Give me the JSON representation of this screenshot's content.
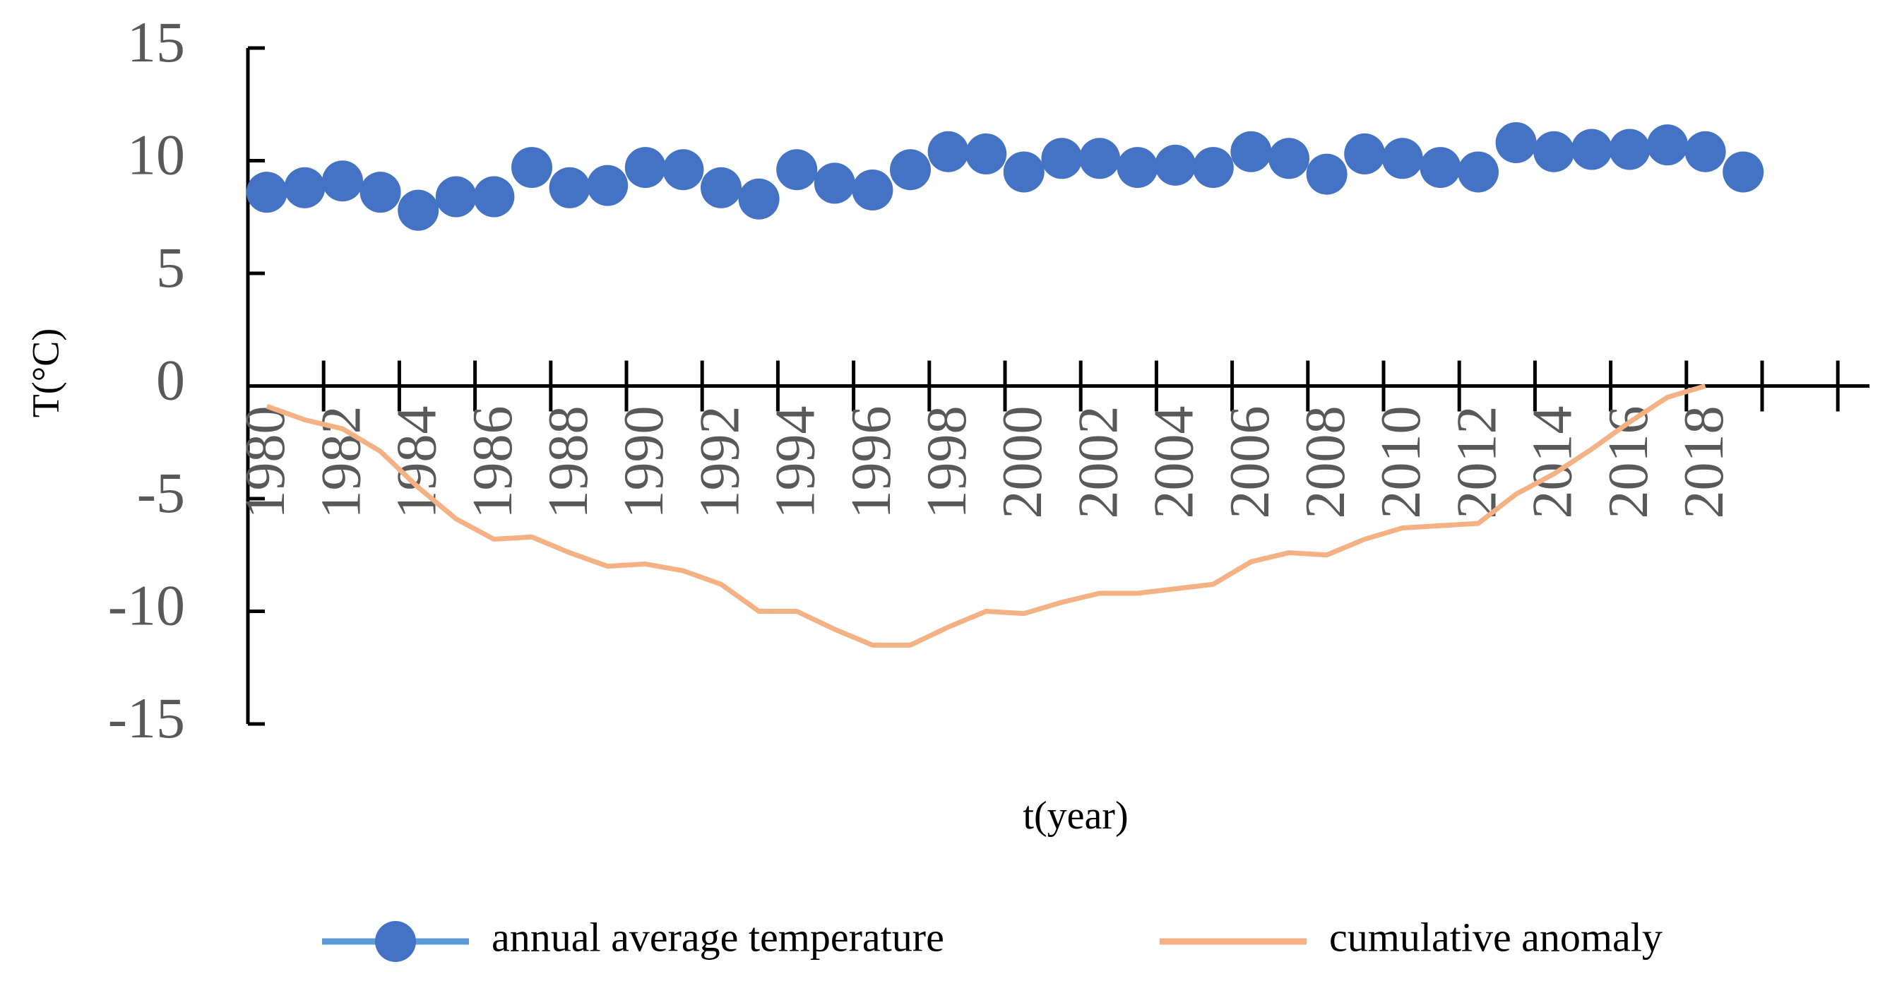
{
  "chart_data": {
    "type": "line",
    "y_label": "T(°C)",
    "x_label": "t(year)",
    "categories": [
      1980,
      null,
      1982,
      null,
      1984,
      null,
      1986,
      null,
      1988,
      null,
      1990,
      null,
      1992,
      null,
      1994,
      null,
      1996,
      null,
      1998,
      null,
      2000,
      null,
      2002,
      null,
      2004,
      null,
      2006,
      null,
      2008,
      null,
      2010,
      null,
      2012,
      null,
      2014,
      null,
      2016,
      null,
      2018,
      null
    ],
    "series": [
      {
        "name": "annual average temperature",
        "color": "#4472c4",
        "marker": true,
        "values": [
          8.6,
          8.8,
          9.1,
          8.6,
          7.8,
          8.4,
          8.4,
          9.7,
          8.8,
          8.9,
          9.7,
          9.6,
          8.8,
          8.3,
          9.6,
          9.0,
          8.7,
          9.6,
          10.4,
          10.3,
          9.5,
          10.1,
          10.1,
          9.7,
          9.8,
          9.7,
          10.4,
          10.1,
          9.4,
          10.3,
          10.1,
          9.7,
          9.5,
          10.8,
          10.4,
          10.5,
          10.5,
          10.7,
          10.4,
          9.5
        ]
      },
      {
        "name": "cumulative anomaly",
        "color": "#f4b183",
        "marker": false,
        "values": [
          -0.9,
          -1.5,
          -1.9,
          -2.9,
          -4.5,
          -5.9,
          -6.8,
          -6.7,
          -7.4,
          -8.0,
          -7.9,
          -8.2,
          -8.8,
          -10.0,
          -10.0,
          -10.8,
          -11.5,
          -11.5,
          -10.7,
          -10.0,
          -10.1,
          -9.6,
          -9.2,
          -9.2,
          -9.0,
          -8.8,
          -7.8,
          -7.4,
          -7.5,
          -6.8,
          -6.3,
          -6.2,
          -6.1,
          -4.8,
          -3.9,
          -2.8,
          -1.6,
          -0.5,
          0,
          null
        ]
      }
    ],
    "ylim": [
      -15,
      15
    ],
    "yticks": [
      -15,
      -10,
      -5,
      0,
      5,
      10,
      15
    ]
  }
}
